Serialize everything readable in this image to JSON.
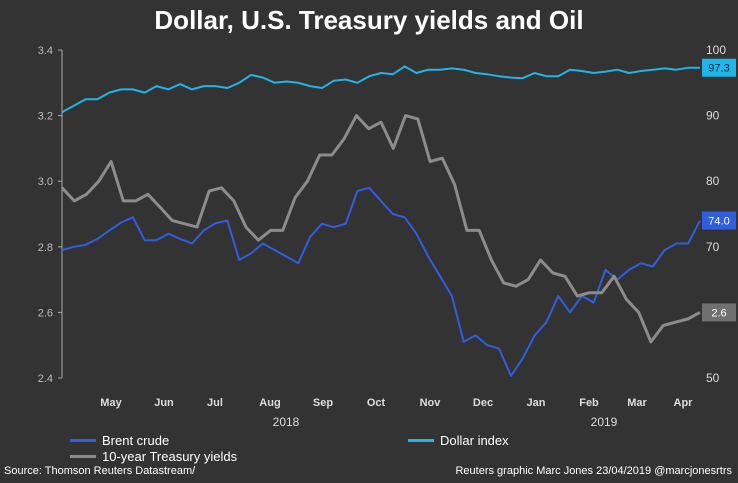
{
  "chart_data": {
    "type": "line",
    "title": "Dollar, U.S. Treasury yields and Oil",
    "x_labels": [
      "May",
      "Jun",
      "Jul",
      "Aug",
      "Sep",
      "Oct",
      "Nov",
      "Dec",
      "Jan",
      "Feb",
      "Mar",
      "Apr"
    ],
    "year_labels": [
      "2018",
      "2019"
    ],
    "left_axis": {
      "ticks": [
        "3.4",
        "3.2",
        "3.0",
        "2.8",
        "2.6",
        "2.4"
      ],
      "range": [
        2.4,
        3.4
      ]
    },
    "right_axis": {
      "ticks": [
        "100",
        "90",
        "80",
        "70",
        "60",
        "50"
      ],
      "range": [
        50,
        100
      ]
    },
    "series": [
      {
        "name": "Brent crude",
        "axis": "right",
        "color": "#2f5fe0",
        "end_label": "74.0",
        "values": [
          69.5,
          70.0,
          70.3,
          71.2,
          72.5,
          73.7,
          74.5,
          71.0,
          71.0,
          72.0,
          71.2,
          70.5,
          72.5,
          73.6,
          74.0,
          68.0,
          69.0,
          70.5,
          69.5,
          68.5,
          67.5,
          71.5,
          73.5,
          73.0,
          73.5,
          78.5,
          79.0,
          77.0,
          75.0,
          74.5,
          72.0,
          68.5,
          65.5,
          62.5,
          55.5,
          56.5,
          55.0,
          54.5,
          50.3,
          53.0,
          56.5,
          58.5,
          62.5,
          60.0,
          62.5,
          61.5,
          66.5,
          65.0,
          66.5,
          67.5,
          67.0,
          69.5,
          70.5,
          70.5,
          74.0
        ]
      },
      {
        "name": "Dollar index",
        "axis": "right",
        "color": "#1fb5e8",
        "end_label": "97.3",
        "values": [
          90.5,
          91.5,
          92.5,
          92.5,
          93.5,
          94.0,
          94.0,
          93.5,
          94.5,
          94.0,
          94.8,
          94.0,
          94.5,
          94.5,
          94.2,
          95.0,
          96.2,
          95.8,
          95.0,
          95.2,
          95.0,
          94.5,
          94.2,
          95.3,
          95.5,
          95.0,
          96.0,
          96.5,
          96.3,
          97.5,
          96.5,
          97.0,
          97.0,
          97.2,
          97.0,
          96.5,
          96.3,
          96.0,
          95.8,
          95.7,
          96.5,
          96.0,
          96.0,
          97.0,
          96.8,
          96.5,
          96.7,
          97.0,
          96.5,
          96.8,
          97.0,
          97.2,
          97.0,
          97.3,
          97.3
        ]
      },
      {
        "name": "10-year Treasury yields",
        "axis": "left",
        "color": "#8c8c8c",
        "end_label": "2.6",
        "values": [
          2.98,
          2.94,
          2.96,
          3.0,
          3.06,
          2.94,
          2.94,
          2.96,
          2.92,
          2.88,
          2.87,
          2.86,
          2.97,
          2.98,
          2.94,
          2.86,
          2.82,
          2.85,
          2.85,
          2.95,
          3.0,
          3.08,
          3.08,
          3.13,
          3.2,
          3.16,
          3.18,
          3.1,
          3.2,
          3.19,
          3.06,
          3.07,
          2.99,
          2.85,
          2.85,
          2.76,
          2.69,
          2.68,
          2.7,
          2.76,
          2.72,
          2.71,
          2.65,
          2.66,
          2.66,
          2.71,
          2.64,
          2.6,
          2.51,
          2.56,
          2.57,
          2.58,
          2.6
        ]
      }
    ],
    "legend": [
      "Brent crude",
      "Dollar index",
      "10-year Treasury yields"
    ],
    "legend_position": "bottom"
  },
  "footer": {
    "source": "Source: Thomson Reuters Datastream/",
    "credit": "Reuters graphic Marc Jones 23/04/2019 @marcjonesrtrs"
  }
}
